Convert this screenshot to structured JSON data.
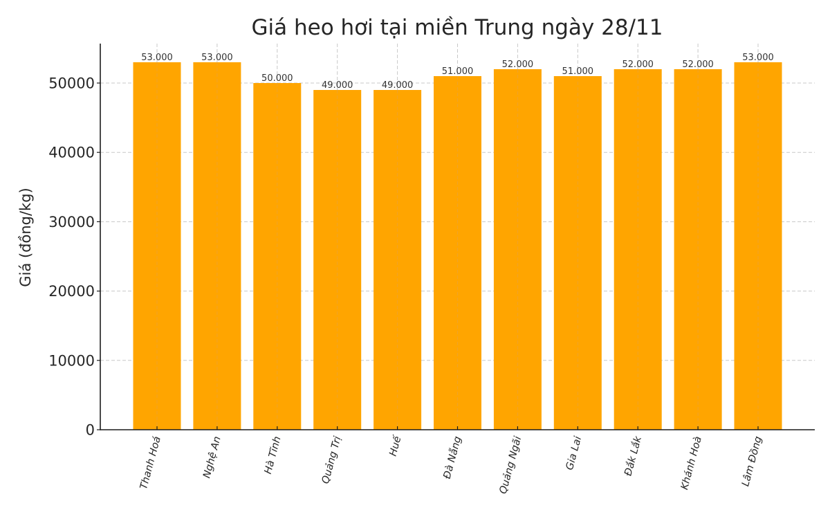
{
  "chart_data": {
    "type": "bar",
    "title": "Giá heo hơi tại miền Trung ngày 28/11",
    "xlabel": "",
    "ylabel": "Giá (đồng/kg)",
    "categories": [
      "Thanh Hoá",
      "Nghệ An",
      "Hà Tĩnh",
      "Quảng Trị",
      "Huế",
      "Đà Nẵng",
      "Quảng Ngãi",
      "Gia Lai",
      "Đắk Lắk",
      "Khánh Hoà",
      "Lâm Đồng"
    ],
    "values": [
      53000,
      53000,
      50000,
      49000,
      49000,
      51000,
      52000,
      51000,
      52000,
      52000,
      53000
    ],
    "value_labels": [
      "53.000",
      "53.000",
      "50.000",
      "49.000",
      "49.000",
      "51.000",
      "52.000",
      "51.000",
      "52.000",
      "52.000",
      "53.000"
    ],
    "yticks": [
      0,
      10000,
      20000,
      30000,
      40000,
      50000
    ],
    "ylim": [
      0,
      55650
    ],
    "grid": true,
    "legend": null,
    "bar_color": "#FFA500",
    "xtick_rotation": 75
  }
}
